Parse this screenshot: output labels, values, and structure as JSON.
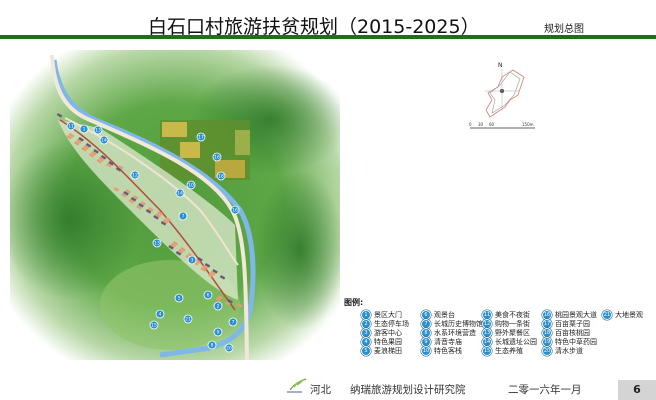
{
  "header": {
    "title": "白石口村旅游扶贫规划（2015-2025）",
    "subtitle": "规划总图"
  },
  "colors": {
    "accent_green": "#1e6e1e",
    "marker_blue": "#2a8fd0",
    "river": "#7fb8e8",
    "road": "#f2e8d8"
  },
  "compass": {
    "north_label": "N",
    "scale_labels": [
      "0",
      "30",
      "60",
      "150m"
    ]
  },
  "map": {
    "markers": [
      "11",
      "1",
      "13",
      "14",
      "12",
      "10",
      "14",
      "7",
      "13",
      "17",
      "16",
      "18",
      "16",
      "6",
      "5",
      "4",
      "21",
      "15",
      "2",
      "7",
      "9",
      "8",
      "20",
      "3"
    ]
  },
  "legend": {
    "title": "图例:",
    "items": [
      {
        "num": "1",
        "label": "景区大门"
      },
      {
        "num": "2",
        "label": "生态停车场"
      },
      {
        "num": "3",
        "label": "游客中心"
      },
      {
        "num": "4",
        "label": "特色果园"
      },
      {
        "num": "5",
        "label": "麦浪梯田"
      },
      {
        "num": "6",
        "label": "观景台"
      },
      {
        "num": "7",
        "label": "长城历史博物馆"
      },
      {
        "num": "8",
        "label": "水系环境营造"
      },
      {
        "num": "9",
        "label": "清音寺庙"
      },
      {
        "num": "10",
        "label": "特色客栈"
      },
      {
        "num": "11",
        "label": "美食不夜街"
      },
      {
        "num": "12",
        "label": "购物一条街"
      },
      {
        "num": "13",
        "label": "野外聚餐区"
      },
      {
        "num": "14",
        "label": "长城遗址公园"
      },
      {
        "num": "15",
        "label": "生态养殖"
      },
      {
        "num": "16",
        "label": "桃园景观大道"
      },
      {
        "num": "17",
        "label": "百亩栗子园"
      },
      {
        "num": "18",
        "label": "百亩核桃园"
      },
      {
        "num": "19",
        "label": "特色中草药园"
      },
      {
        "num": "20",
        "label": "清水步道"
      },
      {
        "num": "21",
        "label": "大地景观"
      }
    ]
  },
  "footer": {
    "province": "河北",
    "institute": "纳瑞旅游规划设计研究院",
    "date": "二零一六年一月",
    "page_number": "6"
  }
}
